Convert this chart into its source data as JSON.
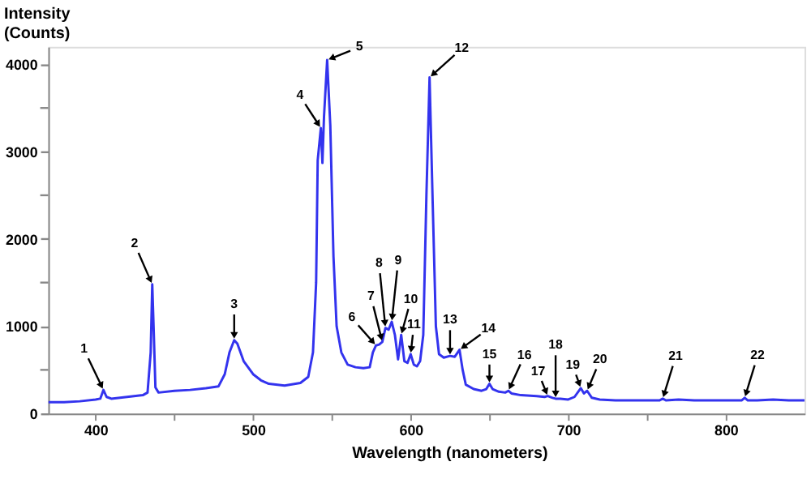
{
  "chart_data": {
    "type": "line",
    "xlabel": "Wavelength (nanometers)",
    "ylabel": "Intensity\n(Counts)",
    "xlim": [
      370,
      850
    ],
    "ylim": [
      0,
      4200
    ],
    "xticks": [
      400,
      {
        "value": 450,
        "label": null
      },
      500,
      {
        "value": 550,
        "label": null
      },
      600,
      {
        "value": 650,
        "label": null
      },
      700,
      {
        "value": 750,
        "label": null
      },
      800
    ],
    "yticks": [
      0,
      {
        "value": 500,
        "label": null
      },
      1000,
      {
        "value": 1500,
        "label": null
      },
      2000,
      {
        "value": 2500,
        "label": null
      },
      3000,
      {
        "value": 3500,
        "label": null
      },
      4000
    ],
    "grid": false,
    "marker": "none",
    "line_style": "solid",
    "series": [
      {
        "color": "#3333ee",
        "x": [
          370,
          380,
          390,
          400,
          403,
          405,
          407,
          410,
          420,
          430,
          433,
          435,
          436,
          437,
          438,
          440,
          450,
          460,
          470,
          478,
          482,
          485,
          488,
          490,
          494,
          500,
          505,
          510,
          520,
          530,
          535,
          538,
          540,
          541,
          543,
          544,
          545,
          547,
          549,
          551,
          553,
          556,
          560,
          565,
          570,
          574,
          576,
          578,
          580,
          582,
          584,
          586,
          588,
          590,
          592,
          594,
          596,
          598,
          600,
          602,
          604,
          606,
          608,
          610,
          612,
          614,
          616,
          618,
          621,
          625,
          628,
          631,
          633,
          635,
          640,
          645,
          648,
          650,
          652,
          656,
          660,
          662,
          664,
          670,
          680,
          685,
          687,
          690,
          692,
          695,
          700,
          704,
          708,
          710,
          712,
          715,
          720,
          730,
          740,
          750,
          758,
          760,
          762,
          770,
          780,
          800,
          810,
          812,
          814,
          820,
          830,
          840,
          850
        ],
        "values": [
          130,
          130,
          140,
          160,
          170,
          270,
          190,
          170,
          190,
          210,
          240,
          700,
          1480,
          900,
          300,
          240,
          260,
          270,
          290,
          310,
          450,
          700,
          840,
          800,
          600,
          450,
          380,
          340,
          320,
          350,
          420,
          700,
          1500,
          2900,
          3270,
          2870,
          3400,
          4050,
          3300,
          1800,
          1000,
          700,
          560,
          530,
          520,
          530,
          700,
          780,
          790,
          820,
          980,
          960,
          1050,
          900,
          620,
          900,
          600,
          580,
          680,
          560,
          540,
          600,
          900,
          2500,
          3850,
          2400,
          1000,
          680,
          640,
          660,
          650,
          730,
          500,
          330,
          280,
          260,
          280,
          340,
          280,
          250,
          240,
          260,
          230,
          210,
          200,
          190,
          200,
          180,
          170,
          170,
          160,
          190,
          290,
          230,
          260,
          180,
          160,
          150,
          150,
          150,
          150,
          170,
          150,
          160,
          150,
          150,
          150,
          180,
          150,
          150,
          160,
          150,
          150
        ]
      }
    ],
    "annotations": [
      {
        "text": "1",
        "x": 405,
        "y": 270
      },
      {
        "text": "2",
        "x": 436,
        "y": 1480
      },
      {
        "text": "3",
        "x": 488,
        "y": 840
      },
      {
        "text": "4",
        "x": 543,
        "y": 3270
      },
      {
        "text": "5",
        "x": 547,
        "y": 4050
      },
      {
        "text": "6",
        "x": 578,
        "y": 780
      },
      {
        "text": "7",
        "x": 582,
        "y": 820
      },
      {
        "text": "8",
        "x": 584,
        "y": 980
      },
      {
        "text": "9",
        "x": 588,
        "y": 1050
      },
      {
        "text": "10",
        "x": 594,
        "y": 900
      },
      {
        "text": "11",
        "x": 600,
        "y": 680
      },
      {
        "text": "12",
        "x": 612,
        "y": 3850
      },
      {
        "text": "13",
        "x": 625,
        "y": 660
      },
      {
        "text": "14",
        "x": 631,
        "y": 730
      },
      {
        "text": "15",
        "x": 650,
        "y": 340
      },
      {
        "text": "16",
        "x": 662,
        "y": 260
      },
      {
        "text": "17",
        "x": 687,
        "y": 200
      },
      {
        "text": "18",
        "x": 692,
        "y": 170
      },
      {
        "text": "19",
        "x": 708,
        "y": 290
      },
      {
        "text": "20",
        "x": 712,
        "y": 260
      },
      {
        "text": "21",
        "x": 760,
        "y": 170
      },
      {
        "text": "22",
        "x": 812,
        "y": 180
      }
    ]
  }
}
